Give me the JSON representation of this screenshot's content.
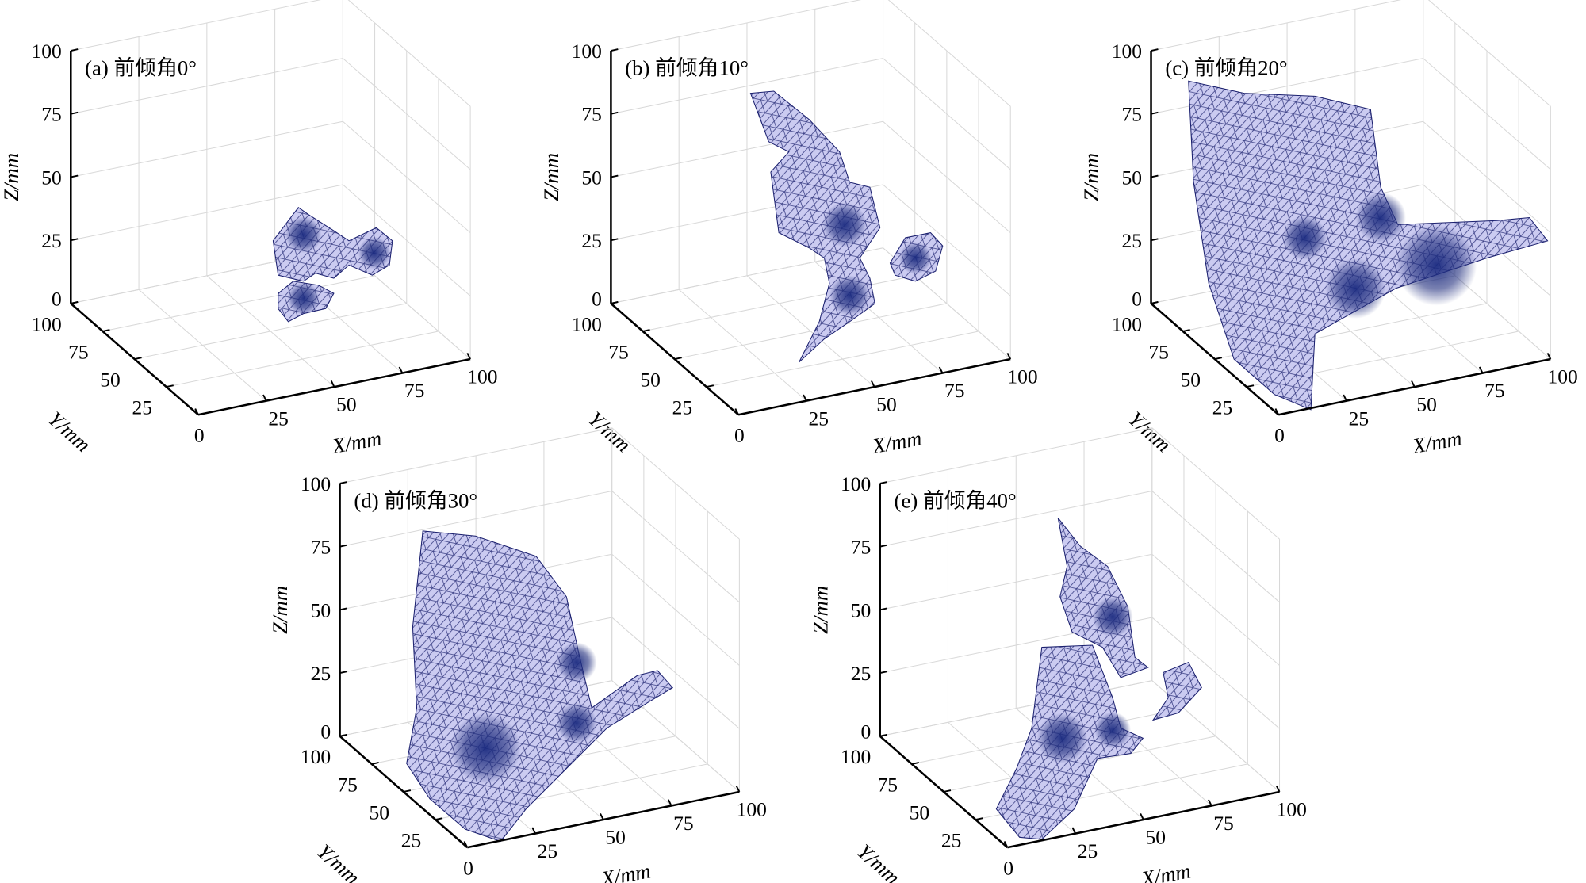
{
  "chart_data": [
    {
      "type": "surface",
      "title": "(a) 前倾角0°",
      "xlabel": "X/mm",
      "ylabel": "Y/mm",
      "zlabel": "Z/mm",
      "xlim": [
        0,
        100
      ],
      "ylim": [
        0,
        100
      ],
      "zlim": [
        0,
        100
      ],
      "xticks": [
        "0",
        "25",
        "50",
        "75",
        "100"
      ],
      "yticks": [
        "25",
        "50",
        "75",
        "100"
      ],
      "zticks": [
        "0",
        "25",
        "50",
        "75",
        "100"
      ],
      "grid": true,
      "mesh_color": "#c8c8f0",
      "edge_color": "#1a1f6e"
    },
    {
      "type": "surface",
      "title": "(b) 前倾角10°",
      "xlabel": "X/mm",
      "ylabel": "Y/mm",
      "zlabel": "Z/mm",
      "xlim": [
        0,
        100
      ],
      "ylim": [
        0,
        100
      ],
      "zlim": [
        0,
        100
      ],
      "xticks": [
        "0",
        "25",
        "50",
        "75",
        "100"
      ],
      "yticks": [
        "25",
        "50",
        "75",
        "100"
      ],
      "zticks": [
        "0",
        "25",
        "50",
        "75",
        "100"
      ],
      "grid": true,
      "mesh_color": "#c8c8f0",
      "edge_color": "#1a1f6e"
    },
    {
      "type": "surface",
      "title": "(c) 前倾角20°",
      "xlabel": "X/mm",
      "ylabel": "Y/mm",
      "zlabel": "Z/mm",
      "xlim": [
        0,
        100
      ],
      "ylim": [
        0,
        100
      ],
      "zlim": [
        0,
        100
      ],
      "xticks": [
        "0",
        "25",
        "50",
        "75",
        "100"
      ],
      "yticks": [
        "25",
        "50",
        "75",
        "100"
      ],
      "zticks": [
        "0",
        "25",
        "50",
        "75",
        "100"
      ],
      "grid": true,
      "mesh_color": "#c8c8f0",
      "edge_color": "#1a1f6e"
    },
    {
      "type": "surface",
      "title": "(d) 前倾角30°",
      "xlabel": "X/mm",
      "ylabel": "Y/mm",
      "zlabel": "Z/mm",
      "xlim": [
        0,
        100
      ],
      "ylim": [
        0,
        100
      ],
      "zlim": [
        0,
        100
      ],
      "xticks": [
        "0",
        "25",
        "50",
        "75",
        "100"
      ],
      "yticks": [
        "25",
        "50",
        "75",
        "100"
      ],
      "zticks": [
        "0",
        "25",
        "50",
        "75",
        "100"
      ],
      "grid": true,
      "mesh_color": "#c8c8f0",
      "edge_color": "#1a1f6e"
    },
    {
      "type": "surface",
      "title": "(e) 前倾角40°",
      "xlabel": "X/mm",
      "ylabel": "Y/mm",
      "zlabel": "Z/mm",
      "xlim": [
        0,
        100
      ],
      "ylim": [
        0,
        100
      ],
      "zlim": [
        0,
        100
      ],
      "xticks": [
        "0",
        "25",
        "50",
        "75",
        "100"
      ],
      "yticks": [
        "25",
        "50",
        "75",
        "100"
      ],
      "zticks": [
        "0",
        "25",
        "50",
        "75",
        "100"
      ],
      "grid": true,
      "mesh_color": "#c8c8f0",
      "edge_color": "#1a1f6e"
    }
  ]
}
